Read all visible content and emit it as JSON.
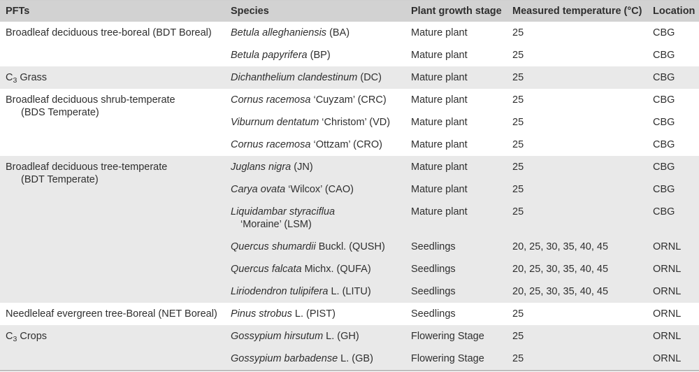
{
  "table": {
    "colors": {
      "header_bg": "#d2d2d2",
      "shaded_band_bg": "#e9e9e9",
      "plain_band_bg": "#ffffff",
      "text": "#2f2f2f",
      "bottom_border": "#bdbdbd"
    },
    "columns": [
      "PFTs",
      "Species",
      "Plant growth stage",
      "Measured temperature (°C)",
      "Location"
    ],
    "groups": [
      {
        "pft_lines": [
          "Broadleaf deciduous tree-boreal (BDT Boreal)"
        ],
        "shaded": false,
        "rows": [
          {
            "species": {
              "binomial": "Betula alleghaniensis",
              "suffix": " (BA)",
              "line2": null
            },
            "stage": "Mature plant",
            "temperature": "25",
            "location": "CBG"
          },
          {
            "species": {
              "binomial": "Betula papyrifera",
              "suffix": " (BP)",
              "line2": null
            },
            "stage": "Mature plant",
            "temperature": "25",
            "location": "CBG"
          }
        ]
      },
      {
        "pft_lines": [
          "C₃ Grass"
        ],
        "shaded": true,
        "rows": [
          {
            "species": {
              "binomial": "Dichanthelium clandestinum",
              "suffix": " (DC)",
              "line2": null
            },
            "stage": "Mature plant",
            "temperature": "25",
            "location": "CBG"
          }
        ]
      },
      {
        "pft_lines": [
          "Broadleaf deciduous shrub-temperate",
          "(BDS Temperate)"
        ],
        "shaded": false,
        "rows": [
          {
            "species": {
              "binomial": "Cornus racemosa",
              "suffix": " ‘Cuyzam’ (CRC)",
              "line2": null
            },
            "stage": "Mature plant",
            "temperature": "25",
            "location": "CBG"
          },
          {
            "species": {
              "binomial": "Viburnum dentatum",
              "suffix": " ‘Christom’ (VD)",
              "line2": null
            },
            "stage": "Mature plant",
            "temperature": "25",
            "location": "CBG"
          },
          {
            "species": {
              "binomial": "Cornus racemosa",
              "suffix": " ‘Ottzam’ (CRO)",
              "line2": null
            },
            "stage": "Mature plant",
            "temperature": "25",
            "location": "CBG"
          }
        ]
      },
      {
        "pft_lines": [
          "Broadleaf deciduous tree-temperate",
          "(BDT Temperate)"
        ],
        "shaded": true,
        "rows": [
          {
            "species": {
              "binomial": "Juglans nigra",
              "suffix": " (JN)",
              "line2": null
            },
            "stage": "Mature plant",
            "temperature": "25",
            "location": "CBG"
          },
          {
            "species": {
              "binomial": "Carya ovata",
              "suffix": " ‘Wilcox’ (CAO)",
              "line2": null
            },
            "stage": "Mature plant",
            "temperature": "25",
            "location": "CBG"
          },
          {
            "species": {
              "binomial": "Liquidambar styraciflua",
              "suffix": "",
              "line2": "‘Moraine’ (LSM)"
            },
            "stage": "Mature plant",
            "temperature": "25",
            "location": "CBG"
          },
          {
            "species": {
              "binomial": "Quercus shumardii",
              "suffix": " Buckl. (QUSH)",
              "line2": null
            },
            "stage": "Seedlings",
            "temperature": "20, 25, 30, 35, 40, 45",
            "location": "ORNL"
          },
          {
            "species": {
              "binomial": "Quercus falcata",
              "suffix": " Michx. (QUFA)",
              "line2": null
            },
            "stage": "Seedlings",
            "temperature": "20, 25, 30, 35, 40, 45",
            "location": "ORNL"
          },
          {
            "species": {
              "binomial": "Liriodendron tulipifera",
              "suffix": " L. (LITU)",
              "line2": null
            },
            "stage": "Seedlings",
            "temperature": "20, 25, 30, 35, 40, 45",
            "location": "ORNL"
          }
        ]
      },
      {
        "pft_lines": [
          "Needleleaf evergreen tree-Boreal (NET Boreal)"
        ],
        "shaded": false,
        "rows": [
          {
            "species": {
              "binomial": "Pinus strobus",
              "suffix": " L. (PIST)",
              "line2": null
            },
            "stage": "Seedlings",
            "temperature": "25",
            "location": "ORNL"
          }
        ]
      },
      {
        "pft_lines": [
          "C₃ Crops"
        ],
        "shaded": true,
        "rows": [
          {
            "species": {
              "binomial": "Gossypium hirsutum",
              "suffix": " L. (GH)",
              "line2": null
            },
            "stage": "Flowering Stage",
            "temperature": "25",
            "location": "ORNL"
          },
          {
            "species": {
              "binomial": "Gossypium barbadense",
              "suffix": " L. (GB)",
              "line2": null
            },
            "stage": "Flowering Stage",
            "temperature": "25",
            "location": "ORNL"
          }
        ]
      }
    ]
  }
}
